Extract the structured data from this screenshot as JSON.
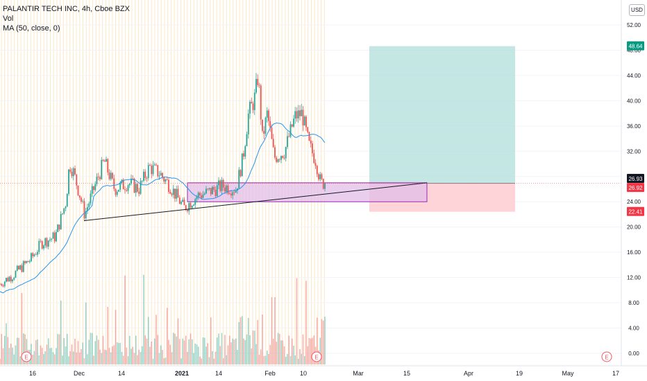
{
  "legend": {
    "symbol": "PALANTIR TECH INC, 4h, Cboe BZX",
    "volume": "Vol",
    "ma": "MA (50, close, 0)"
  },
  "currency": "USD",
  "colors": {
    "up": "#26a69a",
    "down": "#ef5350",
    "ma": "#2196f3",
    "target_zone": "#b2dfdb",
    "stop_zone": "#ffcdd2",
    "box": "#e1bee7",
    "box_border": "#9c27b0",
    "trendline": "#131722",
    "vgrid": "#fde8c4",
    "price_label": "#131722",
    "target_label": "#089981",
    "stop_label": "#f23645"
  },
  "chart_data": {
    "type": "candlestick",
    "x_ticks": [
      "16",
      "Dec",
      "14",
      "2021",
      "14",
      "Feb",
      "10",
      "Mar",
      "15",
      "Apr",
      "19",
      "May",
      "17"
    ],
    "y_ticks": [
      "52.00",
      "48.00",
      "44.00",
      "40.00",
      "36.00",
      "32.00",
      "28.00",
      "24.00",
      "20.00",
      "16.00",
      "12.00",
      "8.00",
      "4.00",
      "0.00"
    ],
    "y_range": [
      0,
      52
    ],
    "price_labels": [
      {
        "value": 48.64,
        "text": "48.64",
        "kind": "target"
      },
      {
        "value": 26.93,
        "text": "26.93",
        "kind": "last"
      },
      {
        "value": 26.92,
        "text": "26.92",
        "kind": "entry"
      },
      {
        "value": 22.41,
        "text": "22.41",
        "kind": "stop"
      }
    ],
    "position": {
      "entry": 26.92,
      "target": 48.64,
      "stop": 22.41
    },
    "support_box": {
      "top": 27.0,
      "bottom": 24.0
    },
    "trendline": {
      "start": 21.0,
      "end": 27.0
    },
    "earnings_markers": [
      "E",
      "E",
      "E"
    ],
    "price_path": [
      {
        "t": 0,
        "price": 11.0
      },
      {
        "t": 20,
        "price": 12.5
      },
      {
        "t": 45,
        "price": 15.0
      },
      {
        "t": 60,
        "price": 17.5
      },
      {
        "t": 80,
        "price": 18.5
      },
      {
        "t": 95,
        "price": 24.0
      },
      {
        "t": 100,
        "price": 30.0
      },
      {
        "t": 105,
        "price": 29.0
      },
      {
        "t": 115,
        "price": 25.0
      },
      {
        "t": 122,
        "price": 22.0
      },
      {
        "t": 135,
        "price": 26.0
      },
      {
        "t": 150,
        "price": 30.5
      },
      {
        "t": 165,
        "price": 26.0
      },
      {
        "t": 185,
        "price": 27.0
      },
      {
        "t": 200,
        "price": 26.0
      },
      {
        "t": 215,
        "price": 29.5
      },
      {
        "t": 230,
        "price": 28.5
      },
      {
        "t": 245,
        "price": 26.5
      },
      {
        "t": 265,
        "price": 23.0
      },
      {
        "t": 285,
        "price": 25.0
      },
      {
        "t": 300,
        "price": 25.5
      },
      {
        "t": 320,
        "price": 26.5
      },
      {
        "t": 340,
        "price": 26.0
      },
      {
        "t": 350,
        "price": 31.0
      },
      {
        "t": 358,
        "price": 38.0
      },
      {
        "t": 366,
        "price": 40.0
      },
      {
        "t": 372,
        "price": 44.0
      },
      {
        "t": 378,
        "price": 34.0
      },
      {
        "t": 385,
        "price": 38.0
      },
      {
        "t": 395,
        "price": 31.0
      },
      {
        "t": 410,
        "price": 32.0
      },
      {
        "t": 425,
        "price": 37.5
      },
      {
        "t": 435,
        "price": 38.0
      },
      {
        "t": 445,
        "price": 33.0
      },
      {
        "t": 455,
        "price": 30.5
      },
      {
        "t": 462,
        "price": 27.0
      },
      {
        "t": 468,
        "price": 26.93
      }
    ]
  }
}
